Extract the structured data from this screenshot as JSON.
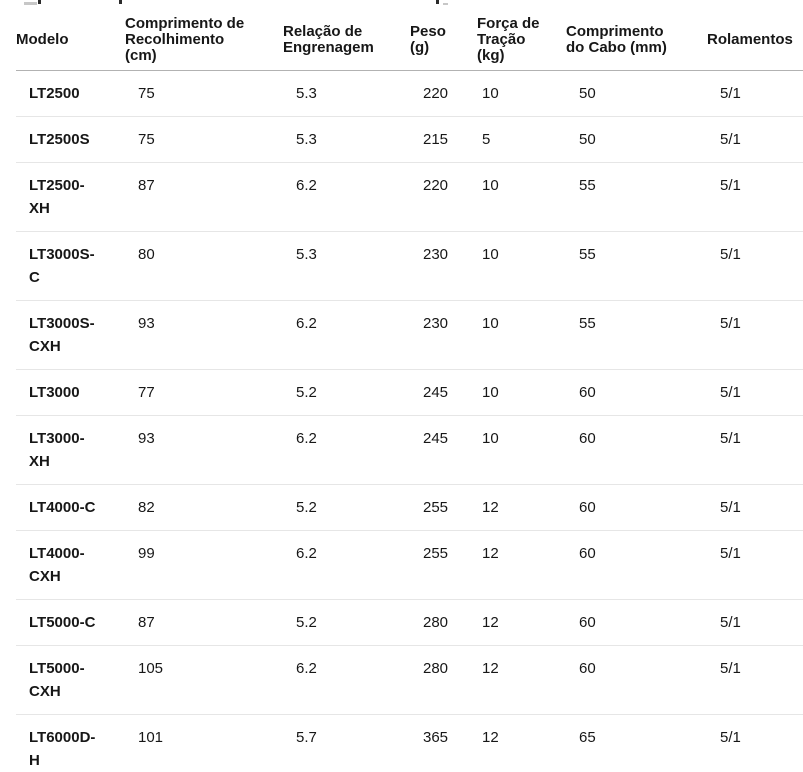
{
  "table": {
    "columns": [
      {
        "label": "Modelo"
      },
      {
        "label": "Comprimento de Recolhimento (cm)"
      },
      {
        "label": "Relação de Engrenagem"
      },
      {
        "label": "Peso (g)"
      },
      {
        "label": "Força de Tração (kg)"
      },
      {
        "label": "Comprimento do Cabo (mm)"
      },
      {
        "label": "Rolamentos"
      }
    ],
    "rows": [
      [
        "LT2500",
        "75",
        "5.3",
        "220",
        "10",
        "50",
        "5/1"
      ],
      [
        "LT2500S",
        "75",
        "5.3",
        "215",
        "5",
        "50",
        "5/1"
      ],
      [
        "LT2500-XH",
        "87",
        "6.2",
        "220",
        "10",
        "55",
        "5/1"
      ],
      [
        "LT3000S-C",
        "80",
        "5.3",
        "230",
        "10",
        "55",
        "5/1"
      ],
      [
        "LT3000S-CXH",
        "93",
        "6.2",
        "230",
        "10",
        "55",
        "5/1"
      ],
      [
        "LT3000",
        "77",
        "5.2",
        "245",
        "10",
        "60",
        "5/1"
      ],
      [
        "LT3000-XH",
        "93",
        "6.2",
        "245",
        "10",
        "60",
        "5/1"
      ],
      [
        "LT4000-C",
        "82",
        "5.2",
        "255",
        "12",
        "60",
        "5/1"
      ],
      [
        "LT4000-CXH",
        "99",
        "6.2",
        "255",
        "12",
        "60",
        "5/1"
      ],
      [
        "LT5000-C",
        "87",
        "5.2",
        "280",
        "12",
        "60",
        "5/1"
      ],
      [
        "LT5000-CXH",
        "105",
        "6.2",
        "280",
        "12",
        "60",
        "5/1"
      ],
      [
        "LT6000D-H",
        "101",
        "5.7",
        "365",
        "12",
        "65",
        "5/1"
      ]
    ]
  }
}
